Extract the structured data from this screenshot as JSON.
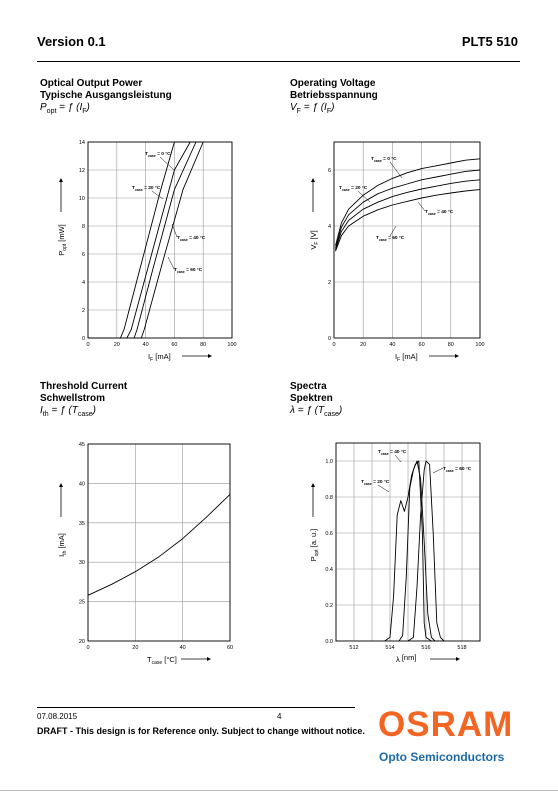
{
  "header": {
    "version": "Version 0.1",
    "product": "PLT5 510"
  },
  "charts_meta": {
    "optical": {
      "title_en": "Optical Output Power",
      "title_de": "Typische Ausgangsleistung",
      "formula": "P<sub>opt</sub> = ƒ (I<sub>F</sub>)"
    },
    "voltage": {
      "title_en": "Operating Voltage",
      "title_de": "Betriebsspannung",
      "formula": "V<sub>F</sub> = ƒ (I<sub>F</sub>)"
    },
    "threshold": {
      "title_en": "Threshold Current",
      "title_de": "Schwellstrom",
      "formula": "I<sub>th</sub> = ƒ (T<sub>case</sub>)"
    },
    "spectra": {
      "title_en": "Spectra",
      "title_de": "Spektren",
      "formula": "λ = ƒ (T<sub>case</sub>)"
    }
  },
  "chart_data": [
    {
      "id": "optical",
      "type": "line",
      "xlabel": "I_F [mA]",
      "ylabel": "P_opt [mW]",
      "xlim": [
        0,
        100
      ],
      "ylim": [
        0,
        14
      ],
      "xticks": [
        0,
        20,
        40,
        60,
        80,
        100
      ],
      "yticks": [
        0,
        2,
        4,
        6,
        8,
        10,
        12,
        14
      ],
      "grid": true,
      "series": [
        {
          "name": "T_case = 0 °C",
          "x": [
            0,
            22.5,
            25,
            36,
            50,
            60,
            70,
            80
          ],
          "y": [
            0,
            0,
            0.6,
            4.9,
            10.4,
            14.2,
            14.2,
            14.2
          ],
          "ends_at_x": 60
        },
        {
          "name": "T_case = 20 °C",
          "x": [
            0,
            27,
            30,
            45,
            60,
            71
          ],
          "y": [
            0,
            0,
            0.6,
            6.3,
            12.0,
            14.2
          ],
          "ends_at_x": 71
        },
        {
          "name": "T_case = 40 °C",
          "x": [
            0,
            32,
            34,
            45,
            60,
            75
          ],
          "y": [
            0,
            0,
            0.6,
            4.9,
            10.6,
            14.2
          ],
          "ends_at_x": 75
        },
        {
          "name": "T_case = 60 °C",
          "x": [
            0,
            37,
            39,
            52,
            66,
            80
          ],
          "y": [
            0,
            0,
            0.6,
            5.5,
            10.6,
            14.2
          ],
          "ends_at_x": 80
        }
      ],
      "annotations": [
        "T_case = 0 °C",
        "T_case = 20 °C",
        "T_case = 40 °C",
        "T_case = 60 °C"
      ]
    },
    {
      "id": "voltage",
      "type": "line",
      "xlabel": "I_F [mA]",
      "ylabel": "V_F [V]",
      "xlim": [
        0,
        100
      ],
      "ylim": [
        0,
        7
      ],
      "xticks": [
        0,
        20,
        40,
        60,
        80,
        100
      ],
      "yticks": [
        0,
        2,
        4,
        6
      ],
      "grid": true,
      "series": [
        {
          "name": "T_case = 0 °C",
          "x": [
            1,
            5,
            10,
            20,
            30,
            40,
            50,
            60,
            70,
            80,
            90,
            100
          ],
          "y": [
            3.3,
            4.1,
            4.6,
            5.1,
            5.45,
            5.7,
            5.9,
            6.05,
            6.15,
            6.25,
            6.35,
            6.4
          ]
        },
        {
          "name": "T_case = 20 °C",
          "x": [
            1,
            5,
            10,
            20,
            30,
            40,
            50,
            60,
            70,
            80,
            90,
            100
          ],
          "y": [
            3.2,
            3.95,
            4.4,
            4.85,
            5.15,
            5.35,
            5.5,
            5.65,
            5.75,
            5.85,
            5.95,
            6.0
          ]
        },
        {
          "name": "T_case = 40 °C",
          "x": [
            1,
            5,
            10,
            20,
            30,
            40,
            50,
            60,
            70,
            80,
            90,
            100
          ],
          "y": [
            3.15,
            3.8,
            4.2,
            4.6,
            4.85,
            5.05,
            5.2,
            5.32,
            5.42,
            5.52,
            5.6,
            5.65
          ]
        },
        {
          "name": "T_case = 60 °C",
          "x": [
            1,
            5,
            10,
            20,
            30,
            40,
            50,
            60,
            70,
            80,
            90,
            100
          ],
          "y": [
            3.1,
            3.65,
            4.0,
            4.35,
            4.58,
            4.75,
            4.88,
            5.0,
            5.1,
            5.18,
            5.25,
            5.3
          ]
        }
      ],
      "annotations": [
        "T_case = 0 °C",
        "T_case = 20 °C",
        "T_case = 40 °C",
        "T_case = 60 °C"
      ]
    },
    {
      "id": "threshold",
      "type": "line",
      "xlabel": "T_case [°C]",
      "ylabel": "I_th [mA]",
      "xlim": [
        0,
        60
      ],
      "ylim": [
        20,
        45
      ],
      "xticks": [
        0,
        20,
        40,
        60
      ],
      "yticks": [
        20,
        25,
        30,
        35,
        40,
        45
      ],
      "grid": true,
      "series": [
        {
          "x": [
            0,
            10,
            20,
            30,
            40,
            50,
            60
          ],
          "y": [
            25.8,
            27.2,
            28.8,
            30.7,
            33.0,
            35.7,
            38.6
          ]
        }
      ]
    },
    {
      "id": "spectra",
      "type": "line",
      "xlabel": "λ [nm]",
      "ylabel": "P_opt [a. u.]",
      "xlim": [
        511,
        519
      ],
      "ylim": [
        0,
        1.1
      ],
      "xticks": [
        512,
        514,
        516,
        518
      ],
      "yticks": [
        0.0,
        0.2,
        0.4,
        0.6,
        0.8,
        1.0
      ],
      "grid": true,
      "series": [
        {
          "name": "T_case = 20 °C",
          "x": [
            513.7,
            514.0,
            514.2,
            514.4,
            514.6,
            514.8,
            515.0,
            515.2,
            515.4,
            515.6,
            515.8,
            515.9,
            516.0,
            516.3
          ],
          "y": [
            0,
            0.02,
            0.25,
            0.7,
            0.78,
            0.72,
            0.8,
            0.92,
            0.98,
            1.0,
            0.6,
            0.1,
            0.02,
            0
          ]
        },
        {
          "name": "T_case = 40 °C",
          "x": [
            514.5,
            514.7,
            514.9,
            515.1,
            515.3,
            515.5,
            515.7,
            515.9,
            516.1,
            516.3,
            516.5,
            516.7
          ],
          "y": [
            0,
            0.03,
            0.35,
            0.85,
            0.95,
            1.0,
            0.9,
            0.55,
            0.15,
            0.02,
            0,
            0
          ]
        },
        {
          "name": "T_case = 60 °C",
          "x": [
            515.0,
            515.3,
            515.5,
            515.7,
            515.9,
            516.0,
            516.2,
            516.4,
            516.6,
            516.8,
            517.0
          ],
          "y": [
            0,
            0.02,
            0.3,
            0.7,
            0.95,
            1.0,
            0.98,
            0.6,
            0.1,
            0.02,
            0
          ]
        }
      ],
      "annotations": [
        "T_case = 40 °C",
        "T_case = 20 °C",
        "T_case = 60 °C"
      ]
    }
  ],
  "footer": {
    "date": "07.08.2015",
    "page": "4",
    "note": "DRAFT - This design is for Reference only. Subject to change without notice.",
    "brand": "OSRAM",
    "brand_sub": "Opto Semiconductors"
  }
}
